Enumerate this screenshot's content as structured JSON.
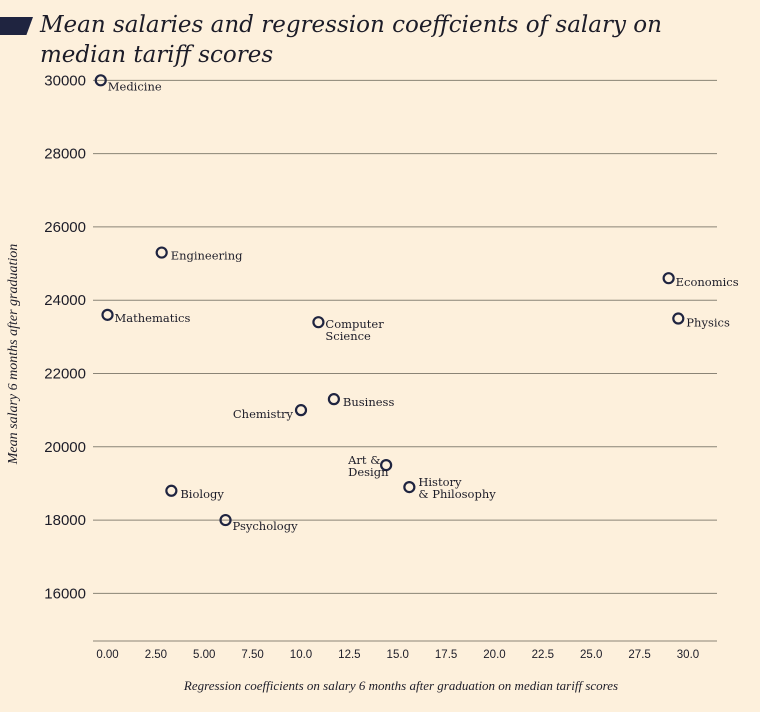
{
  "chart_data": {
    "type": "scatter",
    "title": "Mean salaries and regression coeffcients of salary on median tariff scores",
    "xlabel": "Regression coefficients on salary 6 months after graduation on median tariff scores",
    "ylabel": "Mean salary 6 months after graduation",
    "xlim": [
      -0.75,
      31.5
    ],
    "ylim": [
      14700,
      30500
    ],
    "x_ticks": [
      "0.00",
      "2.50",
      "5.00",
      "7.50",
      "10.0",
      "12.5",
      "15.0",
      "17.5",
      "20.0",
      "22.5",
      "25.0",
      "27.5",
      "30.0"
    ],
    "y_ticks": [
      "30000",
      "28000",
      "26000",
      "24000",
      "22000",
      "20000",
      "18000",
      "16000"
    ],
    "grid": "horizontal",
    "points": [
      {
        "label": "Medicine",
        "x": -0.35,
        "y": 30000
      },
      {
        "label": "Engineering",
        "x": 2.8,
        "y": 25300
      },
      {
        "label": "Mathematics",
        "x": 0.0,
        "y": 23600
      },
      {
        "label": "Computer Science",
        "x": 10.9,
        "y": 23400
      },
      {
        "label": "Economics",
        "x": 29.0,
        "y": 24600
      },
      {
        "label": "Physics",
        "x": 29.5,
        "y": 23500
      },
      {
        "label": "Business",
        "x": 11.7,
        "y": 21300
      },
      {
        "label": "Chemistry",
        "x": 10.0,
        "y": 21000
      },
      {
        "label": "Art & Design",
        "x": 14.4,
        "y": 19500
      },
      {
        "label": "History & Philosophy",
        "x": 15.6,
        "y": 18900
      },
      {
        "label": "Biology",
        "x": 3.3,
        "y": 18800
      },
      {
        "label": "Psychology",
        "x": 6.1,
        "y": 18000
      }
    ]
  },
  "colors": {
    "background": "#fdf0dc",
    "marker": "#1f2440",
    "grid": "#8a8476",
    "text": "#1c1c28"
  }
}
